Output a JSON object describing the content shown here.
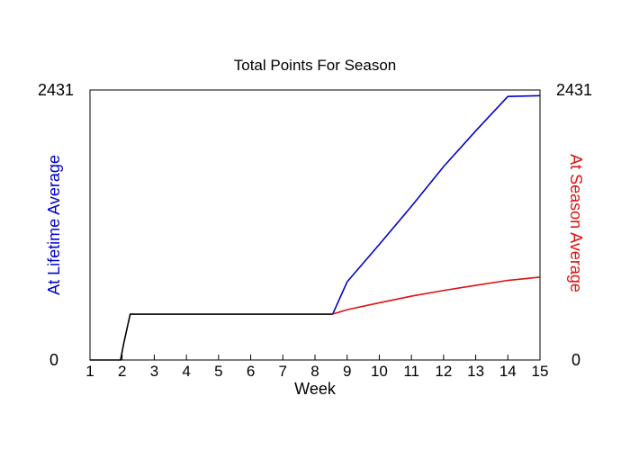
{
  "chart_data": {
    "type": "line",
    "title": "Total Points For Season",
    "xlabel": "Week",
    "ylabel_left": "At Lifetime Average",
    "ylabel_right": "At Season Average",
    "xlim": [
      1,
      15
    ],
    "ylim": [
      0,
      2431
    ],
    "x_ticks": [
      1,
      2,
      3,
      4,
      5,
      6,
      7,
      8,
      9,
      10,
      11,
      12,
      13,
      14,
      15
    ],
    "y_tick_labels": [
      "0",
      "2431"
    ],
    "grid": false,
    "colors": {
      "actual": "#000000",
      "lifetime": "#0000cc",
      "season": "#dd1111",
      "left_label": "#0000cc",
      "right_label": "#dd1111"
    },
    "series": [
      {
        "key": "actual",
        "x": [
          1,
          1.95,
          2.05,
          2.25,
          8.55
        ],
        "y": [
          0,
          0,
          150,
          413,
          413
        ]
      },
      {
        "key": "lifetime",
        "x": [
          8.55,
          9,
          10,
          11,
          12,
          13,
          14,
          15
        ],
        "y": [
          413,
          704,
          1040,
          1384,
          1741,
          2063,
          2373,
          2380
        ]
      },
      {
        "key": "season",
        "x": [
          8.55,
          9,
          10,
          11,
          12,
          13,
          14,
          15
        ],
        "y": [
          413,
          453,
          515,
          575,
          626,
          672,
          717,
          746
        ]
      }
    ]
  }
}
